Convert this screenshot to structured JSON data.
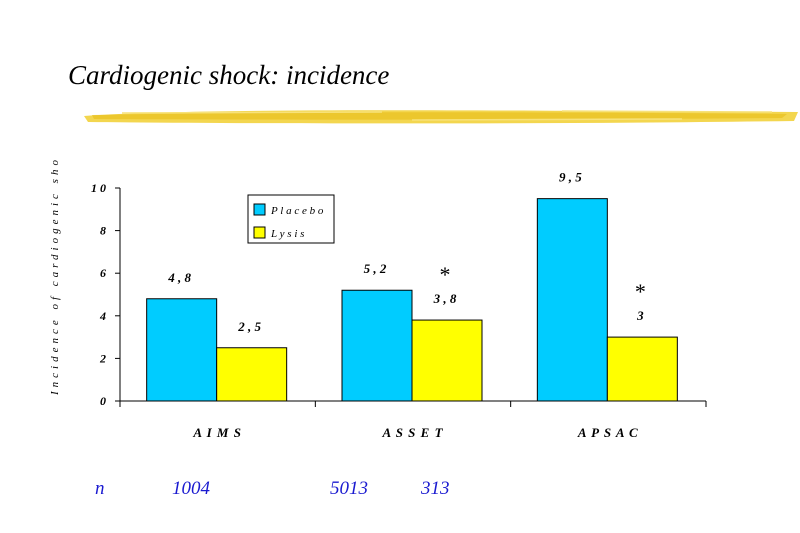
{
  "slide": {
    "title": "Cardiogenic shock: incidence"
  },
  "colors": {
    "placebo": "#00ccff",
    "lysis": "#ffff00",
    "stroke_accent": "#f2d23c",
    "n_text": "#1a1ad0"
  },
  "chart_data": {
    "type": "bar",
    "categories": [
      "AIMS",
      "ASSET",
      "APSAC"
    ],
    "series": [
      {
        "name": "Placebo",
        "values": [
          4.8,
          5.2,
          9.5
        ],
        "labels": [
          "4,8",
          "5,2",
          "9,5"
        ]
      },
      {
        "name": "Lysis",
        "values": [
          2.5,
          3.8,
          3
        ],
        "labels": [
          "2,5",
          "3,8",
          "3"
        ]
      }
    ],
    "ylabel": "Incidence of cardiogenic sho",
    "ylim": [
      0,
      10
    ],
    "yticks": [
      0,
      2,
      4,
      6,
      8,
      10
    ],
    "legend_position": "top-center",
    "significance_markers": [
      {
        "category": "ASSET",
        "series": "Lysis",
        "symbol": "*"
      },
      {
        "category": "APSAC",
        "series": "Lysis",
        "symbol": "*"
      }
    ]
  },
  "footer": {
    "n_label": "n",
    "n_values": [
      "1004",
      "5013",
      "313"
    ]
  }
}
